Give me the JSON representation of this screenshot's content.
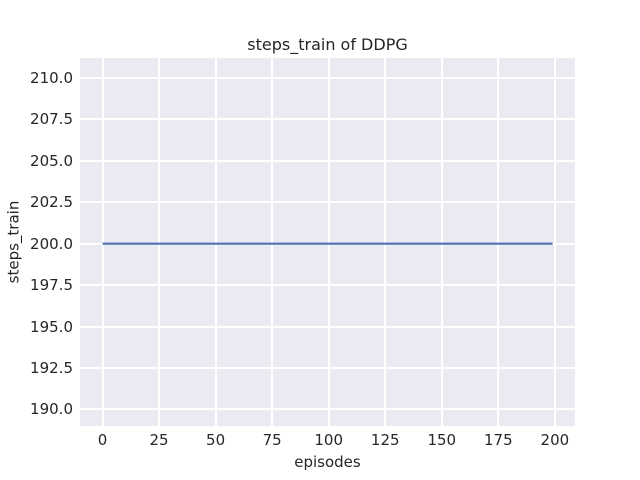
{
  "chart_data": {
    "type": "line",
    "title": "steps_train of DDPG",
    "xlabel": "episodes",
    "ylabel": "steps_train",
    "xlim": [
      -9.95,
      208.9
    ],
    "ylim": [
      189.0,
      211.2
    ],
    "xticks": [
      0,
      25,
      50,
      75,
      100,
      125,
      150,
      175,
      200
    ],
    "xtick_labels": [
      "0",
      "25",
      "50",
      "75",
      "100",
      "125",
      "150",
      "175",
      "200"
    ],
    "yticks": [
      190.0,
      192.5,
      195.0,
      197.5,
      200.0,
      202.5,
      205.0,
      207.5,
      210.0
    ],
    "ytick_labels": [
      "190.0",
      "192.5",
      "195.0",
      "197.5",
      "200.0",
      "202.5",
      "205.0",
      "207.5",
      "210.0"
    ],
    "grid": true,
    "legend": false,
    "series": [
      {
        "name": "steps_train",
        "color": "#4C72B0",
        "x": [
          0,
          199
        ],
        "y": [
          200,
          200
        ]
      }
    ],
    "colors": {
      "figure_background": "#FFFFFF",
      "plot_background": "#EAEAF2",
      "gridline": "#FFFFFF",
      "text": "#262626"
    }
  }
}
